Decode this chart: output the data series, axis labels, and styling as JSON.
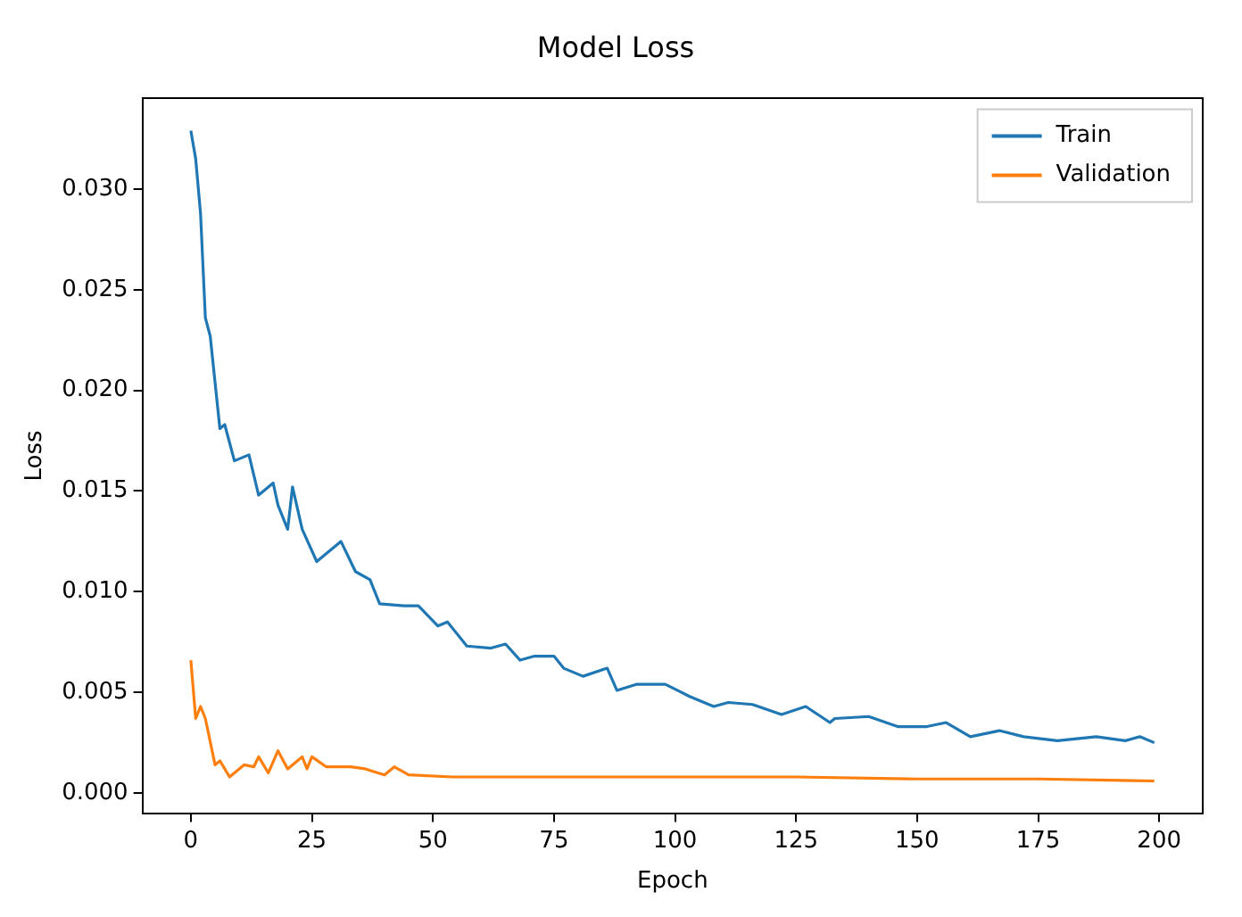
{
  "chart_data": {
    "type": "line",
    "title": "Model Loss",
    "xlabel": "Epoch",
    "ylabel": "Loss",
    "xlim": [
      -10,
      209
    ],
    "xticks": [
      0,
      25,
      50,
      75,
      100,
      125,
      150,
      175,
      200
    ],
    "ylim": [
      -0.001,
      0.0345
    ],
    "yticks": [
      {
        "value": 0,
        "label": "0.000"
      },
      {
        "value": 0.005,
        "label": "0.005"
      },
      {
        "value": 0.01,
        "label": "0.010"
      },
      {
        "value": 0.015,
        "label": "0.015"
      },
      {
        "value": 0.02,
        "label": "0.020"
      },
      {
        "value": 0.025,
        "label": "0.025"
      },
      {
        "value": 0.03,
        "label": "0.030"
      }
    ],
    "grid": false,
    "legend": "top right",
    "marker": "none",
    "line_style": "solid",
    "series": [
      {
        "name": "Train",
        "color": "#1f77b4",
        "x": [
          0,
          1,
          2,
          3,
          4,
          6,
          7,
          9,
          12,
          14,
          17,
          18,
          20,
          21,
          23,
          26,
          31,
          34,
          37,
          39,
          44,
          47,
          51,
          53,
          57,
          62,
          65,
          68,
          71,
          75,
          77,
          81,
          86,
          88,
          92,
          98,
          103,
          108,
          111,
          116,
          122,
          127,
          132,
          133,
          140,
          146,
          152,
          156,
          161,
          167,
          172,
          179,
          187,
          193,
          196,
          199
        ],
        "values": [
          0.0329,
          0.0315,
          0.0288,
          0.0236,
          0.0227,
          0.0181,
          0.0183,
          0.0165,
          0.0168,
          0.0148,
          0.0154,
          0.0143,
          0.0131,
          0.0152,
          0.0131,
          0.0115,
          0.0125,
          0.011,
          0.0106,
          0.0094,
          0.0093,
          0.0093,
          0.0083,
          0.0085,
          0.0073,
          0.0072,
          0.0074,
          0.0066,
          0.0068,
          0.0068,
          0.0062,
          0.0058,
          0.0062,
          0.0051,
          0.0054,
          0.0054,
          0.0048,
          0.0043,
          0.0045,
          0.0044,
          0.0039,
          0.0043,
          0.0035,
          0.0037,
          0.0038,
          0.0033,
          0.0033,
          0.0035,
          0.0028,
          0.0031,
          0.0028,
          0.0026,
          0.0028,
          0.0026,
          0.0028,
          0.0025
        ]
      },
      {
        "name": "Validation",
        "color": "#ff7f0e",
        "x": [
          0,
          1,
          2,
          3,
          5,
          6,
          8,
          11,
          13,
          14,
          16,
          18,
          20,
          23,
          24,
          25,
          28,
          33,
          36,
          40,
          42,
          45,
          54,
          75,
          100,
          125,
          150,
          175,
          199
        ],
        "values": [
          0.0066,
          0.0037,
          0.0043,
          0.0037,
          0.0014,
          0.0016,
          0.0008,
          0.0014,
          0.0013,
          0.0018,
          0.001,
          0.0021,
          0.0012,
          0.0018,
          0.0012,
          0.0018,
          0.0013,
          0.0013,
          0.0012,
          0.0009,
          0.0013,
          0.0009,
          0.0008,
          0.0008,
          0.0008,
          0.0008,
          0.0007,
          0.0007,
          0.0006
        ]
      }
    ]
  }
}
